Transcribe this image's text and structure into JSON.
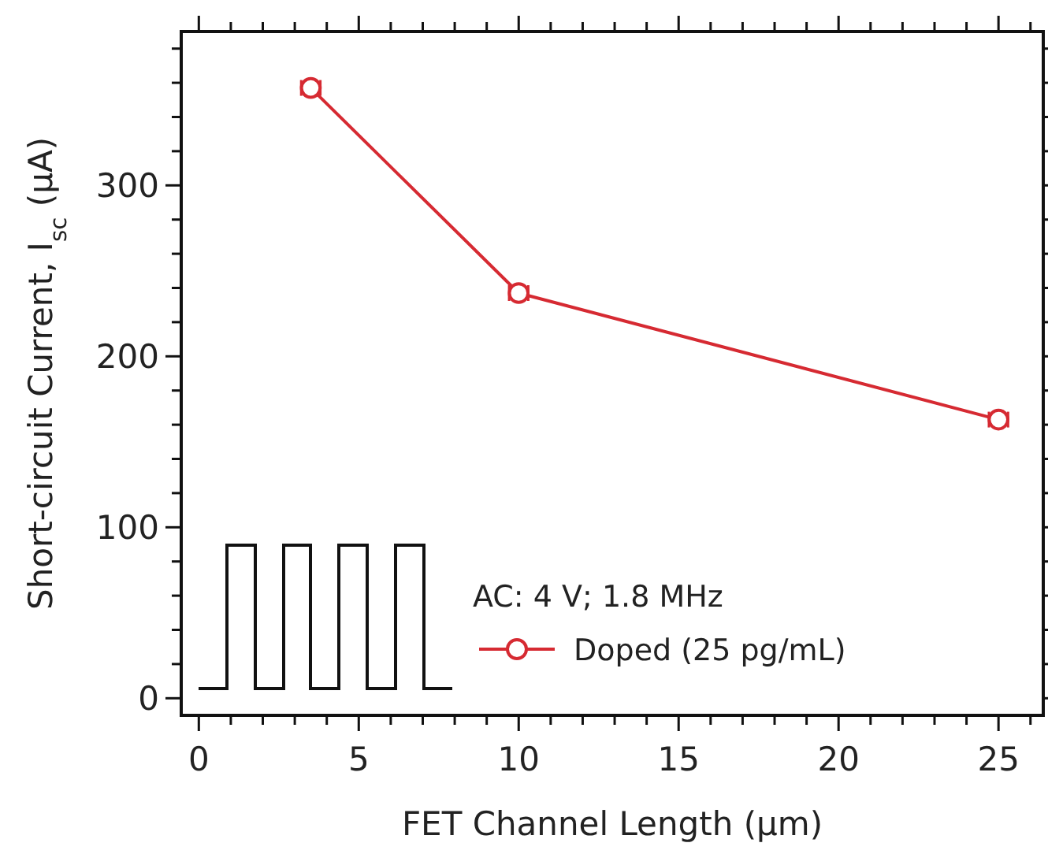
{
  "chart_data": {
    "type": "line",
    "xlabel": "FET Channel Length (μm)",
    "ylabel": "Short-circuit Current, I$_{sc}$ (μA)",
    "legend_title": "AC: 4 V; 1.8 MHz",
    "legend": "bottom",
    "marker": "circle",
    "line_style": "solid",
    "grid": false,
    "x": [
      3.5,
      10,
      25
    ],
    "series": [
      {
        "name": "Doped (25 pg/mL)",
        "color": "#d62a32",
        "values": [
          357,
          237,
          163
        ],
        "xerrors": [
          0.3,
          0.3,
          0.3
        ]
      }
    ],
    "xlim": [
      -0.55,
      26.4
    ],
    "ylim": [
      -10,
      390
    ],
    "xticks": [
      0,
      {
        "value": 1,
        "label": null
      },
      {
        "value": 2,
        "label": null
      },
      {
        "value": 3,
        "label": null
      },
      {
        "value": 4,
        "label": null
      },
      5,
      {
        "value": 6,
        "label": null
      },
      {
        "value": 7,
        "label": null
      },
      {
        "value": 8,
        "label": null
      },
      {
        "value": 9,
        "label": null
      },
      10,
      {
        "value": 11,
        "label": null
      },
      {
        "value": 12,
        "label": null
      },
      {
        "value": 13,
        "label": null
      },
      {
        "value": 14,
        "label": null
      },
      15,
      {
        "value": 16,
        "label": null
      },
      {
        "value": 17,
        "label": null
      },
      {
        "value": 18,
        "label": null
      },
      {
        "value": 19,
        "label": null
      },
      20,
      {
        "value": 21,
        "label": null
      },
      {
        "value": 22,
        "label": null
      },
      {
        "value": 23,
        "label": null
      },
      {
        "value": 24,
        "label": null
      },
      25,
      {
        "value": 26,
        "label": null
      }
    ],
    "yticks": [
      0,
      {
        "value": 20,
        "label": null
      },
      {
        "value": 40,
        "label": null
      },
      {
        "value": 60,
        "label": null
      },
      {
        "value": 80,
        "label": null
      },
      100,
      {
        "value": 120,
        "label": null
      },
      {
        "value": 140,
        "label": null
      },
      {
        "value": 160,
        "label": null
      },
      {
        "value": 180,
        "label": null
      },
      200,
      {
        "value": 220,
        "label": null
      },
      {
        "value": 240,
        "label": null
      },
      {
        "value": 260,
        "label": null
      },
      {
        "value": 280,
        "label": null
      },
      300,
      {
        "value": 320,
        "label": null
      },
      {
        "value": 340,
        "label": null
      },
      {
        "value": 360,
        "label": null
      },
      {
        "value": 380,
        "label": null
      }
    ]
  }
}
